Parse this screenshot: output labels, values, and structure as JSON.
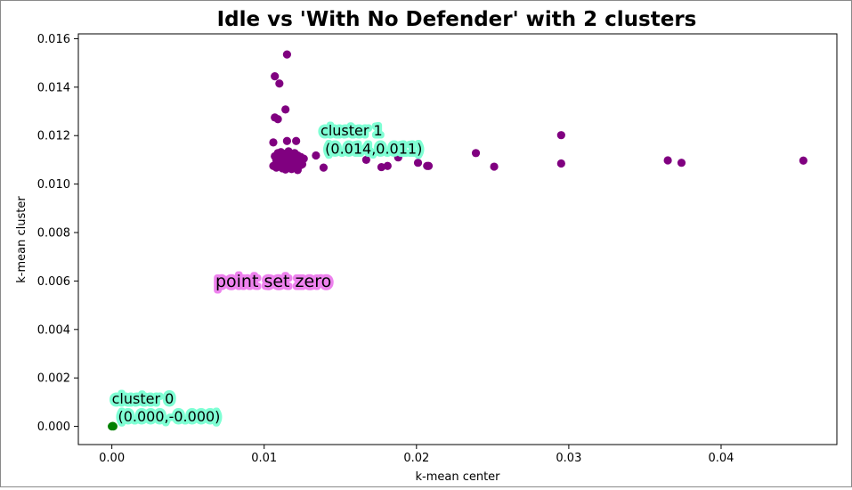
{
  "chart_data": {
    "type": "scatter",
    "title": "Idle vs 'With No Defender' with 2 clusters",
    "xlabel": "k-mean center",
    "ylabel": "k-mean cluster",
    "xlim": [
      -0.0022,
      0.0476
    ],
    "ylim": [
      -0.00075,
      0.0162
    ],
    "xticks": [
      "0.00",
      "0.01",
      "0.02",
      "0.03",
      "0.04"
    ],
    "yticks": [
      "0.000",
      "0.002",
      "0.004",
      "0.006",
      "0.008",
      "0.010",
      "0.012",
      "0.014",
      "0.016"
    ],
    "grid": false,
    "series": [
      {
        "color": "#800080",
        "points": [
          [
            0.0115,
            0.01535
          ],
          [
            0.0107,
            0.01445
          ],
          [
            0.011,
            0.01415
          ],
          [
            0.0114,
            0.01308
          ],
          [
            0.0107,
            0.01275
          ],
          [
            0.0109,
            0.01268
          ],
          [
            0.0106,
            0.01172
          ],
          [
            0.0115,
            0.01178
          ],
          [
            0.0121,
            0.01178
          ],
          [
            0.0107,
            0.01115
          ],
          [
            0.0109,
            0.01128
          ],
          [
            0.0111,
            0.01132
          ],
          [
            0.0113,
            0.01125
          ],
          [
            0.0116,
            0.01135
          ],
          [
            0.0118,
            0.0112
          ],
          [
            0.012,
            0.01128
          ],
          [
            0.0122,
            0.01118
          ],
          [
            0.0124,
            0.01112
          ],
          [
            0.0126,
            0.01105
          ],
          [
            0.0108,
            0.01098
          ],
          [
            0.011,
            0.0109
          ],
          [
            0.0112,
            0.01088
          ],
          [
            0.0114,
            0.01095
          ],
          [
            0.0117,
            0.01092
          ],
          [
            0.0119,
            0.01085
          ],
          [
            0.0121,
            0.01098
          ],
          [
            0.0123,
            0.0109
          ],
          [
            0.0125,
            0.01082
          ],
          [
            0.0106,
            0.01075
          ],
          [
            0.0108,
            0.01068
          ],
          [
            0.011,
            0.01072
          ],
          [
            0.0112,
            0.01065
          ],
          [
            0.0114,
            0.0106
          ],
          [
            0.0116,
            0.0107
          ],
          [
            0.0118,
            0.01062
          ],
          [
            0.012,
            0.01074
          ],
          [
            0.0122,
            0.01066
          ],
          [
            0.0124,
            0.01078
          ],
          [
            0.0111,
            0.01102
          ],
          [
            0.0115,
            0.01108
          ],
          [
            0.0119,
            0.01105
          ],
          [
            0.0113,
            0.0108
          ],
          [
            0.0117,
            0.01078
          ],
          [
            0.0122,
            0.01058
          ],
          [
            0.0134,
            0.01118
          ],
          [
            0.0139,
            0.01068
          ],
          [
            0.0167,
            0.011
          ],
          [
            0.0177,
            0.0107
          ],
          [
            0.0181,
            0.01075
          ],
          [
            0.0188,
            0.0111
          ],
          [
            0.0201,
            0.01088
          ],
          [
            0.0207,
            0.01075
          ],
          [
            0.0208,
            0.01075
          ],
          [
            0.0239,
            0.01128
          ],
          [
            0.0251,
            0.01072
          ],
          [
            0.0295,
            0.01202
          ],
          [
            0.0295,
            0.01085
          ],
          [
            0.0365,
            0.01098
          ],
          [
            0.0374,
            0.01088
          ],
          [
            0.0454,
            0.01097
          ]
        ]
      },
      {
        "color": "#008000",
        "points": [
          [
            0.0,
            0.0
          ],
          [
            5e-05,
            2e-05
          ],
          [
            0.0001,
            0.0
          ]
        ]
      }
    ],
    "annotations": [
      {
        "text": "cluster 1",
        "x": 0.0137,
        "y": 0.012,
        "color": "#7fffd4"
      },
      {
        "text": "(0.014,0.011)",
        "x": 0.014,
        "y": 0.01125,
        "color": "#7fffd4"
      },
      {
        "text": "cluster 0",
        "x": 0.0,
        "y": 0.00095,
        "color": "#7fffd4"
      },
      {
        "text": "(0.000,-0.000)",
        "x": 0.0004,
        "y": 0.0002,
        "color": "#7fffd4"
      },
      {
        "text": "point set zero",
        "x": 0.0068,
        "y": 0.00575,
        "color": "#ee82ee"
      }
    ]
  }
}
